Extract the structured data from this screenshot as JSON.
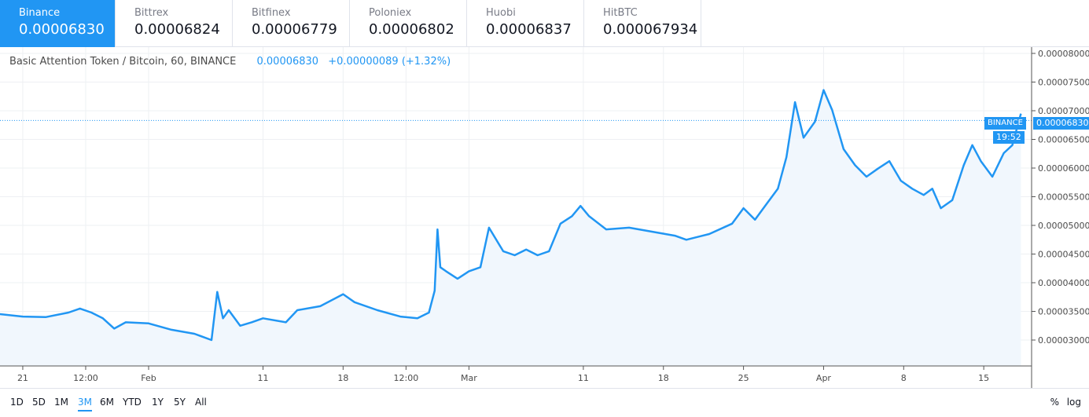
{
  "exchanges": [
    {
      "name": "Binance",
      "price": "0.00006830",
      "active": true
    },
    {
      "name": "Bittrex",
      "price": "0.00006824"
    },
    {
      "name": "Bitfinex",
      "price": "0.00006779"
    },
    {
      "name": "Poloniex",
      "price": "0.00006802"
    },
    {
      "name": "Huobi",
      "price": "0.00006837"
    },
    {
      "name": "HitBTC",
      "price": "0.000067934"
    }
  ],
  "legend": {
    "symbol": "Basic Attention Token / Bitcoin, 60, BINANCE",
    "price": "0.00006830",
    "change": "+0.00000089 (+1.32%)"
  },
  "price_tag": {
    "label": "BINANCE",
    "value": "0.00006830",
    "countdown": "19:52"
  },
  "ranges": [
    "1D",
    "5D",
    "1M",
    "3M",
    "6M",
    "YTD",
    "1Y",
    "5Y",
    "All"
  ],
  "active_range": "3M",
  "scale_buttons": {
    "percent": "%",
    "log": "log"
  },
  "colors": {
    "accent": "#2196f3",
    "line": "#2196f3",
    "area": "#f1f7fd",
    "grid": "#eef0f3"
  },
  "chart_data": {
    "type": "area",
    "y_ticks": [
      "0.00008000",
      "0.00007500",
      "0.00007000",
      "0.00006500",
      "0.00006000",
      "0.00005500",
      "0.00005000",
      "0.00004500",
      "0.00004000",
      "0.00003500",
      "0.00003000"
    ],
    "x_ticks": [
      {
        "label": "21",
        "date": "2019-01-21T00"
      },
      {
        "label": "12:00",
        "date": "2019-01-26T12"
      },
      {
        "label": "Feb",
        "date": "2019-02-01T00"
      },
      {
        "label": "11",
        "date": "2019-02-11T00"
      },
      {
        "label": "18",
        "date": "2019-02-18T00"
      },
      {
        "label": "12:00",
        "date": "2019-02-23T12"
      },
      {
        "label": "Mar",
        "date": "2019-03-01T00"
      },
      {
        "label": "11",
        "date": "2019-03-11T00"
      },
      {
        "label": "18",
        "date": "2019-03-18T00"
      },
      {
        "label": "25",
        "date": "2019-03-25T00"
      },
      {
        "label": "Apr",
        "date": "2019-04-01T00"
      },
      {
        "label": "8",
        "date": "2019-04-08T00"
      },
      {
        "label": "15",
        "date": "2019-04-15T00"
      }
    ],
    "ylim": [
      2.55e-05,
      8.09e-05
    ],
    "current_price": 6.83e-05,
    "grid": true,
    "series": [
      [
        "2019-01-19T00",
        3.452e-05
      ],
      [
        "2019-01-21T00",
        3.41e-05
      ],
      [
        "2019-01-23T00",
        3.4e-05
      ],
      [
        "2019-01-25T00",
        3.48e-05
      ],
      [
        "2019-01-26T00",
        3.55e-05
      ],
      [
        "2019-01-27T00",
        3.48e-05
      ],
      [
        "2019-01-28T00",
        3.38e-05
      ],
      [
        "2019-01-29T00",
        3.2e-05
      ],
      [
        "2019-01-30T00",
        3.31e-05
      ],
      [
        "2019-02-01T00",
        3.29e-05
      ],
      [
        "2019-02-03T00",
        3.18e-05
      ],
      [
        "2019-02-05T00",
        3.11e-05
      ],
      [
        "2019-02-06T12",
        3e-05
      ],
      [
        "2019-02-07T00",
        3.84e-05
      ],
      [
        "2019-02-07T12",
        3.38e-05
      ],
      [
        "2019-02-08T00",
        3.52e-05
      ],
      [
        "2019-02-09T00",
        3.25e-05
      ],
      [
        "2019-02-10T00",
        3.31e-05
      ],
      [
        "2019-02-11T00",
        3.38e-05
      ],
      [
        "2019-02-13T00",
        3.31e-05
      ],
      [
        "2019-02-14T00",
        3.52e-05
      ],
      [
        "2019-02-16T00",
        3.59e-05
      ],
      [
        "2019-02-18T00",
        3.8e-05
      ],
      [
        "2019-02-19T00",
        3.66e-05
      ],
      [
        "2019-02-21T00",
        3.52e-05
      ],
      [
        "2019-02-23T00",
        3.41e-05
      ],
      [
        "2019-02-24T12",
        3.38e-05
      ],
      [
        "2019-02-25T12",
        3.48e-05
      ],
      [
        "2019-02-26T00",
        3.86e-05
      ],
      [
        "2019-02-26T06",
        4.93e-05
      ],
      [
        "2019-02-26T12",
        4.27e-05
      ],
      [
        "2019-02-27T00",
        4.2e-05
      ],
      [
        "2019-02-28T00",
        4.07e-05
      ],
      [
        "2019-03-01T00",
        4.2e-05
      ],
      [
        "2019-03-02T00",
        4.27e-05
      ],
      [
        "2019-03-02T18",
        4.96e-05
      ],
      [
        "2019-03-04T00",
        4.55e-05
      ],
      [
        "2019-03-05T00",
        4.48e-05
      ],
      [
        "2019-03-06T00",
        4.58e-05
      ],
      [
        "2019-03-07T00",
        4.48e-05
      ],
      [
        "2019-03-08T00",
        4.55e-05
      ],
      [
        "2019-03-09T00",
        5.03e-05
      ],
      [
        "2019-03-10T00",
        5.16e-05
      ],
      [
        "2019-03-10T18",
        5.34e-05
      ],
      [
        "2019-03-11T12",
        5.16e-05
      ],
      [
        "2019-03-13T00",
        4.93e-05
      ],
      [
        "2019-03-15T00",
        4.96e-05
      ],
      [
        "2019-03-17T00",
        4.89e-05
      ],
      [
        "2019-03-19T00",
        4.82e-05
      ],
      [
        "2019-03-20T00",
        4.75e-05
      ],
      [
        "2019-03-22T00",
        4.85e-05
      ],
      [
        "2019-03-24T00",
        5.03e-05
      ],
      [
        "2019-03-25T00",
        5.3e-05
      ],
      [
        "2019-03-26T00",
        5.1e-05
      ],
      [
        "2019-03-27T00",
        5.37e-05
      ],
      [
        "2019-03-28T00",
        5.64e-05
      ],
      [
        "2019-03-28T18",
        6.19e-05
      ],
      [
        "2019-03-29T12",
        7.15e-05
      ],
      [
        "2019-03-30T06",
        6.53e-05
      ],
      [
        "2019-03-31T06",
        6.81e-05
      ],
      [
        "2019-04-01T00",
        7.36e-05
      ],
      [
        "2019-04-01T18",
        7.01e-05
      ],
      [
        "2019-04-02T18",
        6.33e-05
      ],
      [
        "2019-04-03T18",
        6.05e-05
      ],
      [
        "2019-04-04T18",
        5.85e-05
      ],
      [
        "2019-04-05T18",
        5.99e-05
      ],
      [
        "2019-04-06T18",
        6.12e-05
      ],
      [
        "2019-04-07T18",
        5.78e-05
      ],
      [
        "2019-04-08T18",
        5.64e-05
      ],
      [
        "2019-04-09T18",
        5.53e-05
      ],
      [
        "2019-04-10T12",
        5.64e-05
      ],
      [
        "2019-04-11T06",
        5.3e-05
      ],
      [
        "2019-04-12T06",
        5.44e-05
      ],
      [
        "2019-04-13T06",
        6.05e-05
      ],
      [
        "2019-04-14T00",
        6.4e-05
      ],
      [
        "2019-04-14T18",
        6.12e-05
      ],
      [
        "2019-04-15T18",
        5.85e-05
      ],
      [
        "2019-04-16T18",
        6.26e-05
      ],
      [
        "2019-04-17T12",
        6.4e-05
      ],
      [
        "2019-04-18T06",
        6.95e-05
      ]
    ]
  }
}
